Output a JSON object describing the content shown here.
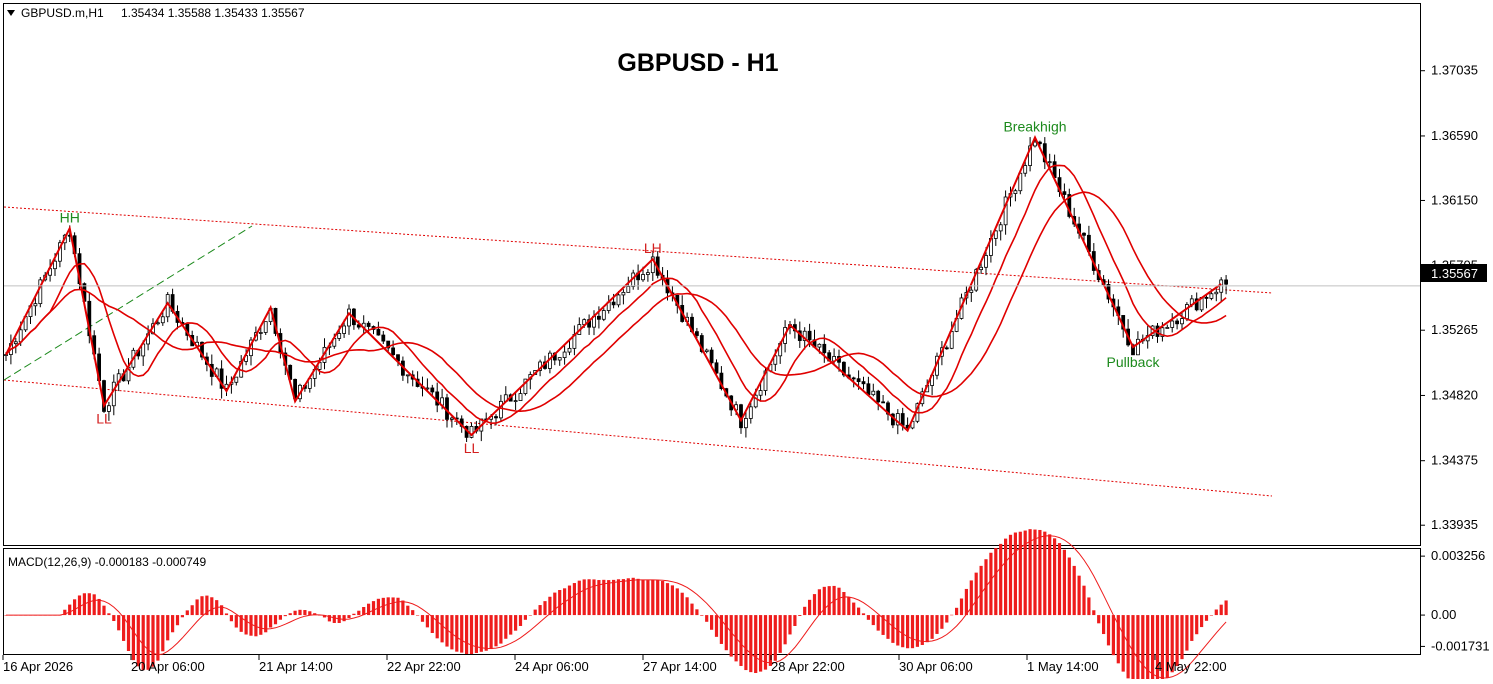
{
  "header": {
    "symbol": "GBPUSD.m,H1",
    "ohlc": "1.35434 1.35588 1.35433 1.35567"
  },
  "title": "GBPUSD - H1",
  "macd_label": "MACD(12,26,9) -0.000183 -0.000749",
  "price_tag": "1.35567",
  "colors": {
    "candle": "#000000",
    "ma": "#e00000",
    "zigzag": "#e00000",
    "channel": "#e00000",
    "trend_dashed": "#1c8a1c",
    "macd_hist": "#ee1c1c",
    "annotation_green": "#1c8a1c",
    "annotation_red": "#d42020"
  },
  "annotations": [
    {
      "text": "HH",
      "color": "green"
    },
    {
      "text": "LL",
      "color": "red"
    },
    {
      "text": "LL",
      "color": "red"
    },
    {
      "text": "LH",
      "color": "red"
    },
    {
      "text": "Breakhigh",
      "color": "green"
    },
    {
      "text": "Pullback",
      "color": "green"
    }
  ],
  "chart_data": {
    "type": "candlestick",
    "price_ticks": [
      "1.37035",
      "1.36590",
      "1.36150",
      "1.35705",
      "1.35265",
      "1.34820",
      "1.34375",
      "1.33935"
    ],
    "ylim": [
      1.338,
      1.3749
    ],
    "last_price": 1.35567,
    "time_labels": [
      "16 Apr 2026",
      "20 Apr 06:00",
      "21 Apr 14:00",
      "22 Apr 22:00",
      "24 Apr 06:00",
      "27 Apr 14:00",
      "28 Apr 22:00",
      "30 Apr 06:00",
      "1 May 14:00",
      "4 May 22:00"
    ],
    "zigzag": [
      [
        0,
        1.351
      ],
      [
        13,
        1.3596
      ],
      [
        20,
        1.3475
      ],
      [
        33,
        1.3545
      ],
      [
        45,
        1.3485
      ],
      [
        54,
        1.3542
      ],
      [
        59,
        1.3478
      ],
      [
        70,
        1.3538
      ],
      [
        95,
        1.3455
      ],
      [
        132,
        1.3575
      ],
      [
        150,
        1.3465
      ],
      [
        160,
        1.353
      ],
      [
        184,
        1.3458
      ],
      [
        210,
        1.3658
      ],
      [
        230,
        1.3515
      ],
      [
        248,
        1.3558
      ]
    ],
    "zigzag_labels": [
      "HH",
      "LL",
      "LL",
      "LH",
      "Breakhigh",
      "Pullback"
    ],
    "macd": {
      "label": "MACD(12,26,9)",
      "main": -0.000183,
      "signal": -0.000749,
      "ticks": [
        "0.003256",
        "0.00",
        "-0.001731"
      ],
      "ylim": [
        -0.00215,
        0.00365
      ]
    }
  }
}
